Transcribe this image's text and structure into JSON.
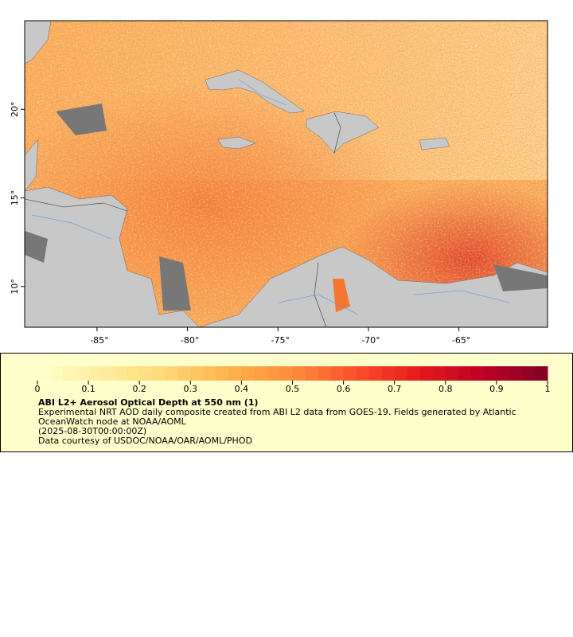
{
  "map": {
    "xlim": [
      -89,
      -60.1
    ],
    "ylim": [
      7.7,
      25
    ],
    "xticks": [
      {
        "value": -85,
        "label": "-85°"
      },
      {
        "value": -80,
        "label": "-80°"
      },
      {
        "value": -75,
        "label": "-75°"
      },
      {
        "value": -70,
        "label": "-70°"
      },
      {
        "value": -65,
        "label": "-65°"
      }
    ],
    "yticks": [
      {
        "value": 10,
        "label": "10°"
      },
      {
        "value": 15,
        "label": "15°"
      },
      {
        "value": 20,
        "label": "20°"
      }
    ]
  },
  "colorbar": {
    "lim": [
      0,
      1
    ],
    "ticks": [
      0,
      0.1,
      0.2,
      0.3,
      0.4,
      0.5,
      0.6,
      0.7,
      0.8,
      0.9,
      1
    ],
    "colors": [
      "#ffffcc",
      "#ffeda0",
      "#fed976",
      "#feb24c",
      "#fd8d3c",
      "#fc4e2a",
      "#e31a1c",
      "#bd0026",
      "#800026"
    ],
    "title": "ABI L2+ Aerosol Optical Depth at 550 nm (1)",
    "lines": [
      "Experimental NRT AOD daily composite created from ABI L2 data from GOES-19. Fields generated by Atlantic",
      "OceanWatch node at NOAA/AOML",
      "(2025-08-30T00:00:00Z)",
      "Data courtesy of USDOC/NOAA/OAR/AOML/PHOD"
    ]
  }
}
